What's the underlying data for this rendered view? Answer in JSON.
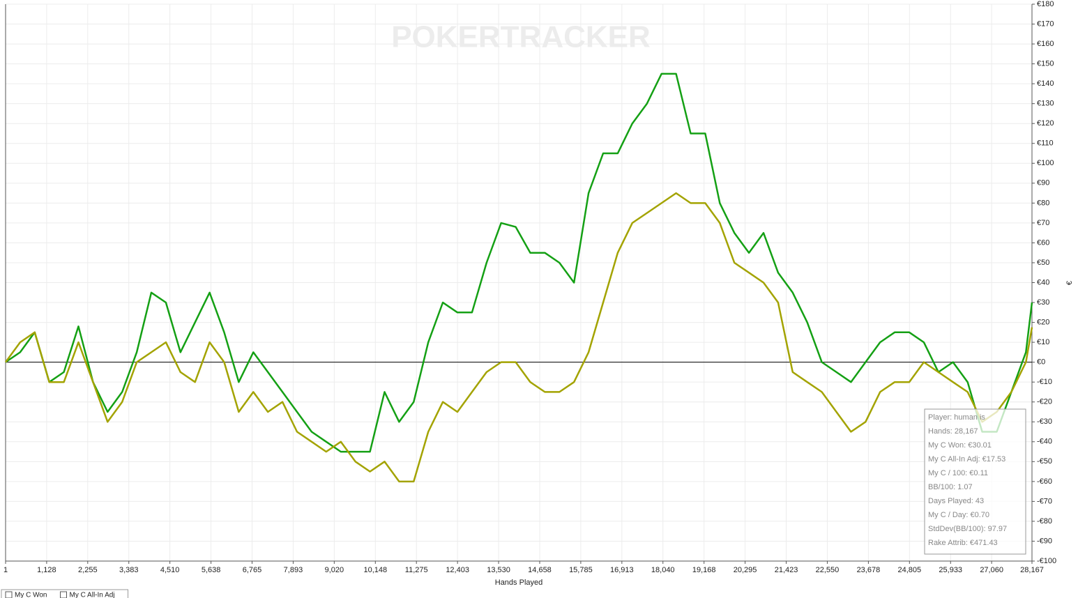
{
  "chart_data": {
    "type": "line",
    "watermark": "POKERTRACKER",
    "x_label": "Hands Played",
    "y_label": "€",
    "xlim": [
      1,
      28167
    ],
    "ylim": [
      -100,
      180
    ],
    "xticks": [
      1,
      {
        "value": 1128,
        "label": "1,128"
      },
      {
        "value": 2255,
        "label": "2,255"
      },
      {
        "value": 3383,
        "label": "3,383"
      },
      {
        "value": 4510,
        "label": "4,510"
      },
      {
        "value": 5638,
        "label": "5,638"
      },
      {
        "value": 6765,
        "label": "6,765"
      },
      {
        "value": 7893,
        "label": "7,893"
      },
      {
        "value": 9020,
        "label": "9,020"
      },
      {
        "value": 10148,
        "label": "10,148"
      },
      {
        "value": 11275,
        "label": "11,275"
      },
      {
        "value": 12403,
        "label": "12,403"
      },
      {
        "value": 13530,
        "label": "13,530"
      },
      {
        "value": 14658,
        "label": "14,658"
      },
      {
        "value": 15785,
        "label": "15,785"
      },
      {
        "value": 16913,
        "label": "16,913"
      },
      {
        "value": 18040,
        "label": "18,040"
      },
      {
        "value": 19168,
        "label": "19,168"
      },
      {
        "value": 20295,
        "label": "20,295"
      },
      {
        "value": 21423,
        "label": "21,423"
      },
      {
        "value": 22550,
        "label": "22,550"
      },
      {
        "value": 23678,
        "label": "23,678"
      },
      {
        "value": 24805,
        "label": "24,805"
      },
      {
        "value": 25933,
        "label": "25,933"
      },
      {
        "value": 27060,
        "label": "27,060"
      },
      {
        "value": 28167,
        "label": "28,167"
      }
    ],
    "yticks": [
      {
        "value": 180,
        "label": "€180"
      },
      {
        "value": 170,
        "label": "€170"
      },
      {
        "value": 160,
        "label": "€160"
      },
      {
        "value": 150,
        "label": "€150"
      },
      {
        "value": 140,
        "label": "€140"
      },
      {
        "value": 130,
        "label": "€130"
      },
      {
        "value": 120,
        "label": "€120"
      },
      {
        "value": 110,
        "label": "€110"
      },
      {
        "value": 100,
        "label": "€100"
      },
      {
        "value": 90,
        "label": "€90"
      },
      {
        "value": 80,
        "label": "€80"
      },
      {
        "value": 70,
        "label": "€70"
      },
      {
        "value": 60,
        "label": "€60"
      },
      {
        "value": 50,
        "label": "€50"
      },
      {
        "value": 40,
        "label": "€40"
      },
      {
        "value": 30,
        "label": "€30"
      },
      {
        "value": 20,
        "label": "€20"
      },
      {
        "value": 10,
        "label": "€10"
      },
      {
        "value": 0,
        "label": "€0"
      },
      {
        "value": -10,
        "label": "-€10"
      },
      {
        "value": -20,
        "label": "-€20"
      },
      {
        "value": -30,
        "label": "-€30"
      },
      {
        "value": -40,
        "label": "-€40"
      },
      {
        "value": -50,
        "label": "-€50"
      },
      {
        "value": -60,
        "label": "-€60"
      },
      {
        "value": -70,
        "label": "-€70"
      },
      {
        "value": -80,
        "label": "-€80"
      },
      {
        "value": -90,
        "label": "-€90"
      },
      {
        "value": -100,
        "label": "-€100"
      }
    ],
    "grid": true,
    "x": [
      1,
      400,
      800,
      1200,
      1600,
      2000,
      2400,
      2800,
      3200,
      3600,
      4000,
      4400,
      4800,
      5200,
      5600,
      6000,
      6400,
      6800,
      7200,
      7600,
      8000,
      8400,
      8800,
      9200,
      9600,
      10000,
      10400,
      10800,
      11200,
      11600,
      12000,
      12400,
      12800,
      13200,
      13600,
      14000,
      14400,
      14800,
      15200,
      15600,
      16000,
      16400,
      16800,
      17200,
      17600,
      18000,
      18400,
      18800,
      19200,
      19600,
      20000,
      20400,
      20800,
      21200,
      21600,
      22000,
      22400,
      22800,
      23200,
      23600,
      24000,
      24400,
      24800,
      25200,
      25600,
      26000,
      26400,
      26800,
      27200,
      27600,
      28000,
      28167
    ],
    "series": [
      {
        "name": "My C Won",
        "color": "#14a014",
        "values": [
          0,
          5,
          15,
          -10,
          -5,
          18,
          -10,
          -25,
          -15,
          5,
          35,
          30,
          5,
          20,
          35,
          15,
          -10,
          5,
          -5,
          -15,
          -25,
          -35,
          -40,
          -45,
          -45,
          -45,
          -15,
          -30,
          -20,
          10,
          30,
          25,
          25,
          50,
          70,
          68,
          55,
          55,
          50,
          40,
          85,
          105,
          105,
          120,
          130,
          145,
          145,
          115,
          115,
          80,
          65,
          55,
          65,
          45,
          35,
          20,
          0,
          -5,
          -10,
          0,
          10,
          15,
          15,
          10,
          -5,
          0,
          -10,
          -35,
          -35,
          -15,
          5,
          30.01
        ]
      },
      {
        "name": "My C All-In Adj",
        "color": "#a3a300",
        "values": [
          0,
          10,
          15,
          -10,
          -10,
          10,
          -10,
          -30,
          -20,
          0,
          5,
          10,
          -5,
          -10,
          10,
          0,
          -25,
          -15,
          -25,
          -20,
          -35,
          -40,
          -45,
          -40,
          -50,
          -55,
          -50,
          -60,
          -60,
          -35,
          -20,
          -25,
          -15,
          -5,
          0,
          0,
          -10,
          -15,
          -15,
          -10,
          5,
          30,
          55,
          70,
          75,
          80,
          85,
          80,
          80,
          70,
          50,
          45,
          40,
          30,
          -5,
          -10,
          -15,
          -25,
          -35,
          -30,
          -15,
          -10,
          -10,
          0,
          -5,
          -10,
          -15,
          -30,
          -25,
          -15,
          0,
          17.53
        ]
      }
    ],
    "info_box": [
      "Player: human is",
      "Hands: 28,167",
      "My C Won: €30.01",
      "My C All-In Adj: €17.53",
      "My C / 100: €0.11",
      "BB/100: 1.07",
      "Days Played: 43",
      "My C / Day: €0.70",
      "StdDev(BB/100): 97.97",
      "Rake Attrib: €471.43"
    ]
  }
}
